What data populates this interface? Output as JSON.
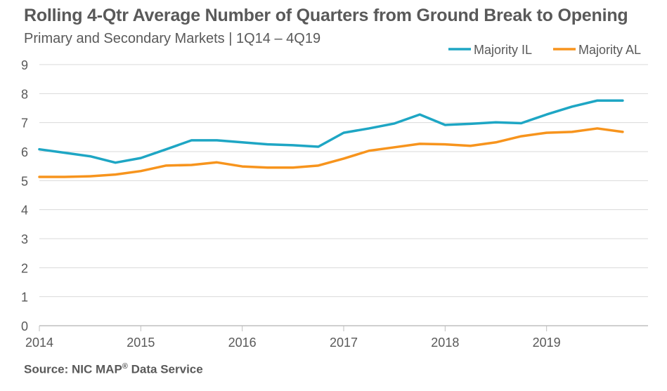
{
  "chart_data": {
    "type": "line",
    "title": "Rolling 4-Qtr Average Number of Quarters from Ground Break to Opening",
    "subtitle": "Primary and Secondary Markets | 1Q14 – 4Q19",
    "xlabel": "",
    "ylabel": "",
    "ylim": [
      0,
      9
    ],
    "yticks": [
      "0",
      "1",
      "2",
      "3",
      "4",
      "5",
      "6",
      "7",
      "8",
      "9"
    ],
    "xticks": [
      "2014",
      "2015",
      "2016",
      "2017",
      "2018",
      "2019"
    ],
    "x": [
      "1Q14",
      "2Q14",
      "3Q14",
      "4Q14",
      "1Q15",
      "2Q15",
      "3Q15",
      "4Q15",
      "1Q16",
      "2Q16",
      "3Q16",
      "4Q16",
      "1Q17",
      "2Q17",
      "3Q17",
      "4Q17",
      "1Q18",
      "2Q18",
      "3Q18",
      "4Q18",
      "1Q19",
      "2Q19",
      "3Q19",
      "4Q19"
    ],
    "grid": true,
    "legend_position": "top-right",
    "series": [
      {
        "name": "Majority IL",
        "color": "#1ea6c4",
        "values": [
          6.08,
          5.96,
          5.84,
          5.62,
          5.78,
          6.08,
          6.39,
          6.39,
          6.32,
          6.25,
          6.22,
          6.17,
          6.65,
          6.8,
          6.97,
          7.28,
          6.92,
          6.96,
          7.01,
          6.98,
          7.28,
          7.55,
          7.76,
          7.76
        ]
      },
      {
        "name": "Majority AL",
        "color": "#f7941d",
        "values": [
          5.13,
          5.13,
          5.15,
          5.21,
          5.33,
          5.52,
          5.54,
          5.63,
          5.49,
          5.45,
          5.45,
          5.52,
          5.76,
          6.03,
          6.15,
          6.27,
          6.25,
          6.2,
          6.32,
          6.53,
          6.65,
          6.68,
          6.8,
          6.68
        ]
      }
    ]
  },
  "source": {
    "prefix": "Source: NIC MAP",
    "mark": "®",
    "suffix": " Data Service"
  }
}
